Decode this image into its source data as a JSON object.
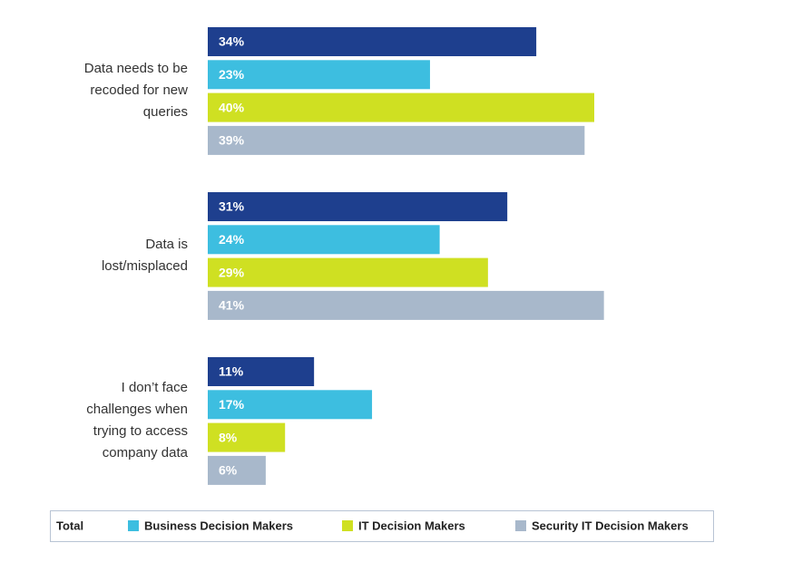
{
  "chart_data": {
    "type": "bar",
    "orientation": "horizontal",
    "categories": [
      "Data needs to be\nrecoded for new\nqueries",
      "Data is\nlost/misplaced",
      "I don’t face\nchallenges when\ntrying to access\ncompany data"
    ],
    "series": [
      {
        "name": "Total",
        "color": "#1e3f8e",
        "values": [
          34,
          31,
          11
        ],
        "value_labels": [
          "34%",
          "31%",
          "11%"
        ]
      },
      {
        "name": "Business Decision Makers",
        "color": "#3dbee0",
        "values": [
          23,
          24,
          17
        ],
        "value_labels": [
          "23%",
          "24%",
          "17%"
        ]
      },
      {
        "name": "IT Decision Makers",
        "color": "#cfe022",
        "values": [
          40,
          29,
          8
        ],
        "value_labels": [
          "40%",
          "29%",
          "8%"
        ]
      },
      {
        "name": "Security IT Decision Makers",
        "color": "#a8b8cb",
        "values": [
          39,
          41,
          6
        ],
        "value_labels": [
          "39%",
          "41%",
          "6%"
        ]
      }
    ],
    "legend": "bottom"
  }
}
